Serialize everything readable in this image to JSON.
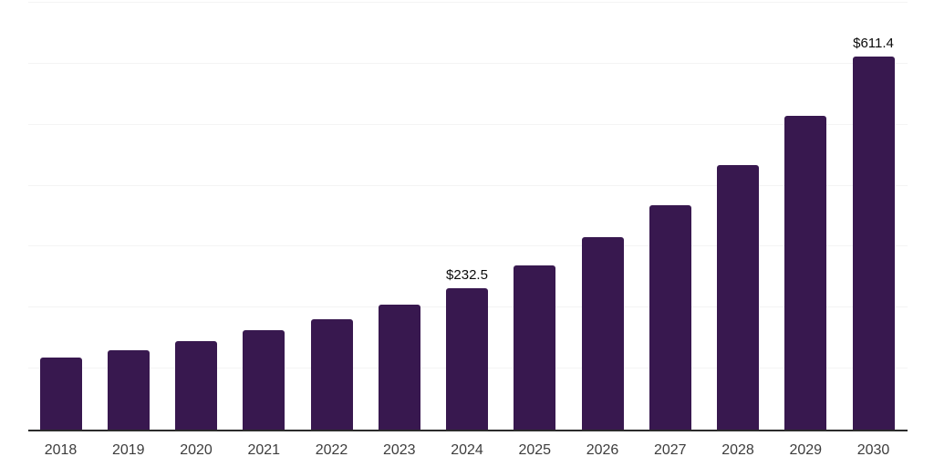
{
  "chart_data": {
    "type": "bar",
    "title": "",
    "xlabel": "",
    "ylabel": "",
    "categories": [
      "2018",
      "2019",
      "2020",
      "2021",
      "2022",
      "2023",
      "2024",
      "2025",
      "2026",
      "2027",
      "2028",
      "2029",
      "2030"
    ],
    "values": [
      118.0,
      129.5,
      145.5,
      163.0,
      181.0,
      205.0,
      232.5,
      269.5,
      315.5,
      368.0,
      433.5,
      515.0,
      611.4
    ],
    "bar_labels": [
      "",
      "",
      "",
      "",
      "",
      "",
      "$232.5",
      "",
      "",
      "",
      "",
      "",
      "$611.4"
    ],
    "labeled_points": [
      {
        "category": "2024",
        "label": "$232.5",
        "value": 232.5
      },
      {
        "category": "2030",
        "label": "$611.4",
        "value": 611.4
      }
    ],
    "ylim": [
      0,
      700
    ],
    "gridline_interval": 100,
    "grid": "horizontal",
    "y_tick_labels_visible": false,
    "legend": "none",
    "colors": {
      "bar": "#38184F",
      "axis": "#2B2B2B",
      "gridline": "#F4F4F4",
      "tick_label": "#3D3D3D",
      "value_label": "#0A0A0A",
      "background": "#FFFFFF"
    }
  }
}
